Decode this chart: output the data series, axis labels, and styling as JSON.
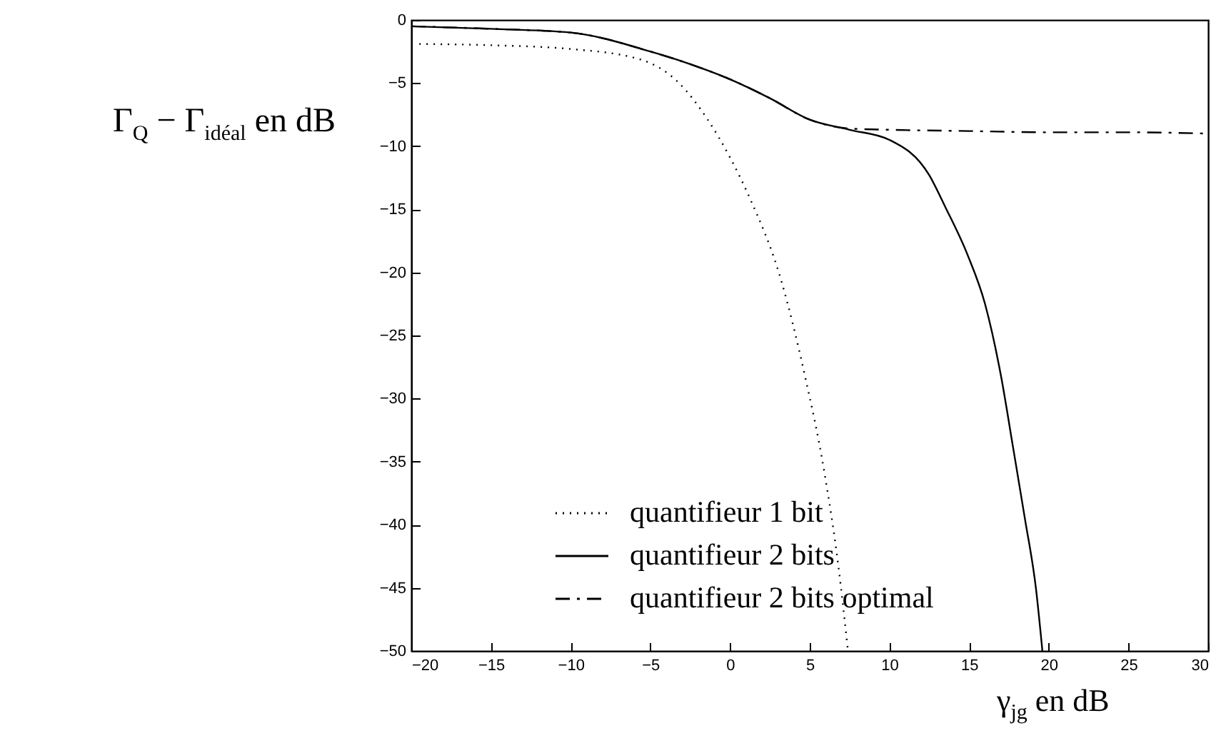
{
  "chart_data": {
    "type": "line",
    "xlabel": "γ$_{jg}$ en dB",
    "ylabel": "Γ$_{Q}$ − Γ$_{idéal}$ en dB",
    "xlim": [
      -20,
      30
    ],
    "xticks": [
      -20,
      -15,
      -10,
      -5,
      0,
      5,
      10,
      15,
      20,
      25,
      30
    ],
    "ylim": [
      -50,
      0
    ],
    "yticks": [
      -50,
      -45,
      -40,
      -35,
      -30,
      -25,
      -20,
      -15,
      -10,
      -5,
      0
    ],
    "grid": false,
    "legend": "bottom left",
    "series": [
      {
        "name": "quantifieur 1 bit",
        "color": "#000000",
        "line_style": "dotted",
        "x": [
          -19.5,
          -15,
          -10,
          -5.7,
          -3.2,
          -1.4,
          0,
          1.2,
          3.2,
          4.7,
          5.9,
          6.8,
          7.4
        ],
        "values": [
          -1.9,
          -2.0,
          -2.3,
          -3.1,
          -5.0,
          -7.9,
          -10.9,
          -14,
          -20.6,
          -28.2,
          -35.7,
          -43.3,
          -50
        ]
      },
      {
        "name": "quantifieur 2 bits",
        "color": "#000000",
        "line_style": "solid",
        "x": [
          -20,
          -15,
          -10,
          -5,
          -2.5,
          0,
          2.5,
          5,
          7.5,
          10,
          12.5,
          13.5,
          14.9,
          16,
          17,
          17.75,
          18.5,
          19.2,
          19.6
        ],
        "values": [
          -0.5,
          -0.7,
          -1.0,
          -2.5,
          -3.5,
          -4.7,
          -6.2,
          -7.9,
          -8.7,
          -9.5,
          -12.3,
          -14.8,
          -18.6,
          -22.5,
          -28.2,
          -33.8,
          -39.5,
          -45.1,
          -50
        ]
      },
      {
        "name": "quantifieur 2 bits optimal",
        "color": "#000000",
        "line_style": "dashed",
        "x": [
          -20,
          -15,
          -10,
          -5,
          -2.5,
          0,
          2.5,
          5,
          7.5,
          10,
          15,
          20,
          25,
          30
        ],
        "values": [
          -0.5,
          -0.7,
          -1.0,
          -2.5,
          -3.5,
          -4.7,
          -6.2,
          -7.9,
          -8.6,
          -8.7,
          -8.8,
          -8.9,
          -8.9,
          -9.0
        ]
      }
    ]
  }
}
